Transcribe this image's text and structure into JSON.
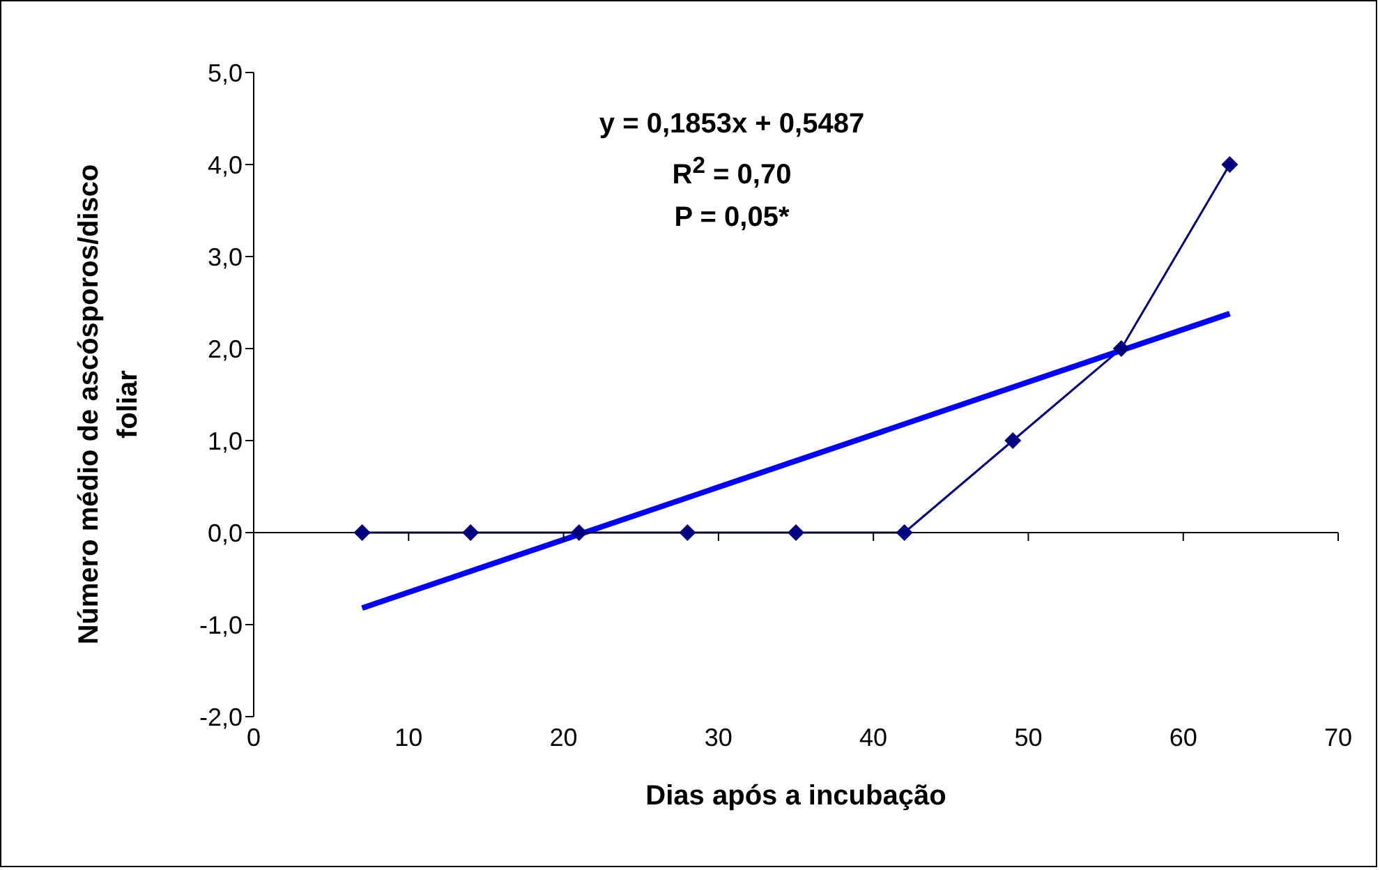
{
  "chart_data": {
    "type": "line",
    "xlabel": "Dias após a incubação",
    "ylabel": "Número médio de ascósporos/disco foliar",
    "annotations": [
      "y = 0,1853x + 0,5487",
      "R$^{2}$ = 0,70",
      "P = 0,05*"
    ],
    "x": [
      7,
      14,
      21,
      28,
      35,
      42,
      49,
      56,
      63
    ],
    "series": [
      {
        "color": "#000080",
        "values": [
          0,
          0,
          0,
          0,
          0,
          0,
          1,
          2,
          4
        ],
        "marker": "diamond"
      },
      {
        "type": "line",
        "color": "#0000ff",
        "x": [
          7,
          63
        ],
        "values": [
          -0.82,
          2.38
        ],
        "marker": "none"
      }
    ],
    "xlim": [
      0,
      70
    ],
    "xticks": [
      0,
      10,
      20,
      30,
      40,
      50,
      60,
      70
    ],
    "ylim": [
      -2,
      5
    ],
    "yticks": [
      {
        "value": -2,
        "label": "-2,0"
      },
      {
        "value": -1,
        "label": "-1,0"
      },
      {
        "value": 0,
        "label": "0,0"
      },
      {
        "value": 1,
        "label": "1,0"
      },
      {
        "value": 2,
        "label": "2,0"
      },
      {
        "value": 3,
        "label": "3,0"
      },
      {
        "value": 4,
        "label": "4,0"
      },
      {
        "value": 5,
        "label": "5,0"
      }
    ],
    "line_style": "solid"
  }
}
